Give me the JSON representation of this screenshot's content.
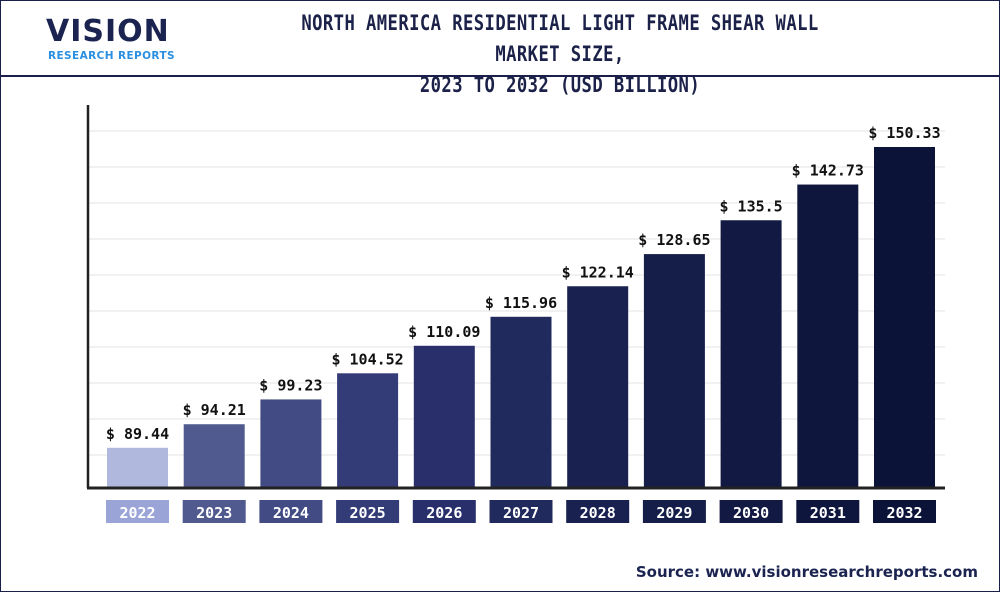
{
  "header": {
    "logo_main": "VISION",
    "logo_sub": "RESEARCH REPORTS",
    "title_line1": "NORTH AMERICA RESIDENTIAL LIGHT FRAME SHEAR WALL MARKET SIZE,",
    "title_line2": "2023 TO 2032 (USD BILLION)"
  },
  "source": "Source: www.visionresearchreports.com",
  "chart_data": {
    "type": "bar",
    "title": "NORTH AMERICA RESIDENTIAL LIGHT FRAME SHEAR WALL MARKET SIZE, 2023 TO 2032 (USD BILLION)",
    "categories": [
      "2022",
      "2023",
      "2024",
      "2025",
      "2026",
      "2027",
      "2028",
      "2029",
      "2030",
      "2031",
      "2032"
    ],
    "values": [
      89.44,
      94.21,
      99.23,
      104.52,
      110.09,
      115.96,
      122.14,
      128.65,
      135.5,
      142.73,
      150.33
    ],
    "data_labels": [
      "$ 89.44",
      "$ 94.21",
      "$ 99.23",
      "$ 104.52",
      "$ 110.09",
      "$ 115.96",
      "$ 122.14",
      "$ 128.65",
      "$ 135.5",
      "$ 142.73",
      "$ 150.33"
    ],
    "xlabel": "",
    "ylabel": "",
    "grid": true,
    "legend": "none",
    "colors": [
      "#b0b9dd",
      "#515a8f",
      "#434b85",
      "#343c77",
      "#282f6a",
      "#202a5c",
      "#182150",
      "#151d49",
      "#121943",
      "#0f163e",
      "#0c1339"
    ],
    "label_box_colors": [
      "#9aa4d6",
      "#515a8f",
      "#434b85",
      "#343c77",
      "#282f6a",
      "#202a5c",
      "#182150",
      "#151d49",
      "#121943",
      "#0f163e",
      "#0c1339"
    ]
  }
}
